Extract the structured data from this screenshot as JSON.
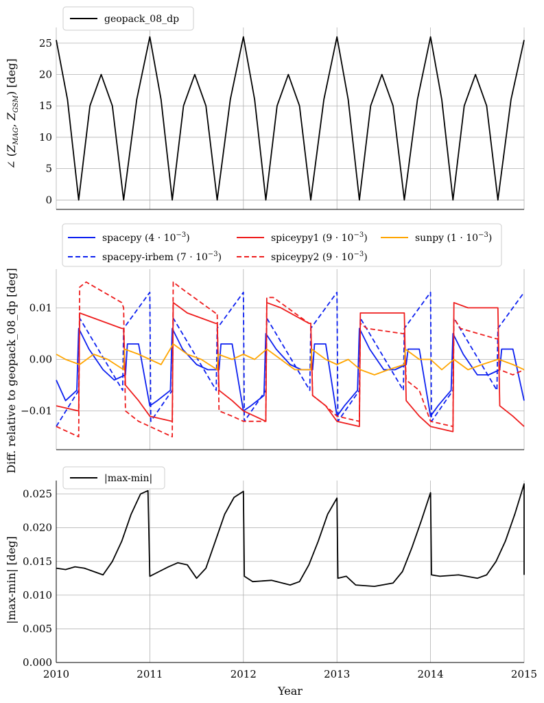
{
  "figure": {
    "xlabel": "Year",
    "colors": {
      "black": "#000000",
      "blue": "#0b1ff0",
      "red": "#ee1c1c",
      "orange": "#ffa500",
      "grid": "#b0b0b0"
    }
  },
  "chart_data": [
    {
      "type": "line",
      "id": "angle",
      "title": "",
      "xlabel": "",
      "ylabel": "∠ (Z_MAG, Z_GSM) [deg]",
      "ylabel_parts": {
        "pre": "∠ (",
        "z1": "Z",
        "s1": "MAG",
        "comma": ", ",
        "z2": "Z",
        "s2": "GSM",
        "post": ") [deg]"
      },
      "xlim": [
        2010,
        2015
      ],
      "ylim": [
        -1.5,
        27.5
      ],
      "xticks": [
        2010,
        2011,
        2012,
        2013,
        2014,
        2015
      ],
      "yticks": [
        0,
        5,
        10,
        15,
        20,
        25
      ],
      "ytick_labels": [
        "0",
        "5",
        "10",
        "15",
        "20",
        "25"
      ],
      "grid": true,
      "legend_position": "top-left",
      "series": [
        {
          "name": "geopack_08_dp",
          "color": "#000000",
          "dash": "solid",
          "x": [
            2010.0,
            2010.12,
            2010.24,
            2010.36,
            2010.48,
            2010.6,
            2010.72,
            2010.86,
            2011.0,
            2011.12,
            2011.24,
            2011.36,
            2011.48,
            2011.6,
            2011.72,
            2011.86,
            2012.0,
            2012.12,
            2012.24,
            2012.36,
            2012.48,
            2012.6,
            2012.72,
            2012.86,
            2013.0,
            2013.12,
            2013.24,
            2013.36,
            2013.48,
            2013.6,
            2013.72,
            2013.86,
            2014.0,
            2014.12,
            2014.24,
            2014.36,
            2014.48,
            2014.6,
            2014.72,
            2014.86,
            2015.0
          ],
          "y": [
            25.5,
            16,
            0,
            15,
            20,
            15,
            0,
            16,
            26,
            16,
            0,
            15,
            20,
            15,
            0,
            16,
            26,
            16,
            0,
            15,
            20,
            15,
            0,
            16,
            26,
            16,
            0,
            15,
            20,
            15,
            0,
            16,
            26,
            16,
            0,
            15,
            20,
            15,
            0,
            16,
            25.5
          ]
        }
      ]
    },
    {
      "type": "line",
      "id": "diff",
      "title": "",
      "xlabel": "",
      "ylabel": "Diff. relative to geopack_08_dp [deg]",
      "xlim": [
        2010,
        2015
      ],
      "ylim": [
        -0.0175,
        0.0175
      ],
      "xticks": [
        2010,
        2011,
        2012,
        2013,
        2014,
        2015
      ],
      "yticks": [
        -0.01,
        0.0,
        0.01
      ],
      "ytick_labels": [
        "−0.01",
        "0.00",
        "0.01"
      ],
      "grid": true,
      "legend_position": "top-center",
      "series": [
        {
          "name": "spacepy",
          "label_value": "(4 · 10",
          "label_exp": "−3",
          "color": "#0b1ff0",
          "dash": "solid",
          "x": [
            2010.0,
            2010.1,
            2010.22,
            2010.24,
            2010.35,
            2010.5,
            2010.62,
            2010.74,
            2010.76,
            2010.88,
            2011.0,
            2011.08,
            2011.22,
            2011.24,
            2011.35,
            2011.5,
            2011.62,
            2011.74,
            2011.76,
            2011.88,
            2012.0,
            2012.08,
            2012.22,
            2012.24,
            2012.35,
            2012.5,
            2012.62,
            2012.74,
            2012.76,
            2012.88,
            2013.0,
            2013.08,
            2013.22,
            2013.24,
            2013.35,
            2013.5,
            2013.62,
            2013.74,
            2013.76,
            2013.88,
            2014.0,
            2014.08,
            2014.22,
            2014.24,
            2014.35,
            2014.5,
            2014.62,
            2014.74,
            2014.76,
            2014.88,
            2015.0
          ],
          "y": [
            -0.004,
            -0.008,
            -0.006,
            0.006,
            0.002,
            -0.002,
            -0.004,
            -0.003,
            0.003,
            0.003,
            -0.009,
            -0.008,
            -0.006,
            0.006,
            0.002,
            -0.001,
            -0.002,
            -0.002,
            0.003,
            0.003,
            -0.01,
            -0.009,
            -0.007,
            0.005,
            0.002,
            -0.001,
            -0.002,
            -0.002,
            0.003,
            0.003,
            -0.011,
            -0.009,
            -0.006,
            0.006,
            0.002,
            -0.002,
            -0.002,
            -0.001,
            0.002,
            0.002,
            -0.011,
            -0.009,
            -0.006,
            0.005,
            0.001,
            -0.003,
            -0.003,
            -0.002,
            0.002,
            0.002,
            -0.008
          ]
        },
        {
          "name": "spacepy-irbem",
          "label_value": "(7 · 10",
          "label_exp": "−3",
          "color": "#0b1ff0",
          "dash": "dashed",
          "x": [
            2010.0,
            2010.24,
            2010.25,
            2010.71,
            2010.72,
            2011.0,
            2011.01,
            2011.24,
            2011.25,
            2011.71,
            2011.72,
            2012.0,
            2012.01,
            2012.24,
            2012.25,
            2012.71,
            2012.72,
            2013.0,
            2013.01,
            2013.24,
            2013.25,
            2013.71,
            2013.72,
            2014.0,
            2014.01,
            2014.24,
            2014.25,
            2014.71,
            2014.72,
            2015.0
          ],
          "y": [
            -0.013,
            -0.006,
            0.008,
            -0.006,
            0.006,
            0.013,
            -0.012,
            -0.006,
            0.008,
            -0.006,
            0.006,
            0.013,
            -0.012,
            -0.006,
            0.008,
            -0.006,
            0.006,
            0.013,
            -0.012,
            -0.006,
            0.008,
            -0.006,
            0.006,
            0.013,
            -0.012,
            -0.006,
            0.008,
            -0.006,
            0.006,
            0.013
          ]
        },
        {
          "name": "spiceypy1",
          "label_value": "(9 · 10",
          "label_exp": "−3",
          "color": "#ee1c1c",
          "dash": "solid",
          "x": [
            2010.0,
            2010.24,
            2010.25,
            2010.4,
            2010.7,
            2010.72,
            2010.74,
            2010.88,
            2011.0,
            2011.24,
            2011.25,
            2011.4,
            2011.7,
            2011.72,
            2011.74,
            2011.88,
            2012.0,
            2012.24,
            2012.25,
            2012.4,
            2012.7,
            2012.72,
            2012.74,
            2012.88,
            2013.0,
            2013.24,
            2013.25,
            2013.4,
            2013.7,
            2013.72,
            2013.74,
            2013.88,
            2014.0,
            2014.24,
            2014.25,
            2014.4,
            2014.7,
            2014.72,
            2014.74,
            2014.88,
            2015.0
          ],
          "y": [
            -0.009,
            -0.01,
            0.009,
            0.008,
            0.006,
            0.006,
            -0.005,
            -0.008,
            -0.011,
            -0.012,
            0.011,
            0.009,
            0.007,
            0.007,
            -0.006,
            -0.008,
            -0.01,
            -0.012,
            0.011,
            0.01,
            0.007,
            0.007,
            -0.007,
            -0.009,
            -0.012,
            -0.013,
            0.009,
            0.009,
            0.009,
            0.009,
            -0.008,
            -0.011,
            -0.013,
            -0.014,
            0.011,
            0.01,
            0.01,
            0.01,
            -0.009,
            -0.011,
            -0.013
          ]
        },
        {
          "name": "spiceypy2",
          "label_value": "(9 · 10",
          "label_exp": "−3",
          "color": "#ee1c1c",
          "dash": "dashed",
          "x": [
            2010.0,
            2010.24,
            2010.25,
            2010.32,
            2010.7,
            2010.72,
            2010.74,
            2010.88,
            2011.0,
            2011.24,
            2011.25,
            2011.32,
            2011.7,
            2011.72,
            2011.74,
            2011.88,
            2012.0,
            2012.24,
            2012.25,
            2012.32,
            2012.7,
            2012.72,
            2012.74,
            2012.88,
            2013.0,
            2013.24,
            2013.25,
            2013.32,
            2013.7,
            2013.72,
            2013.74,
            2013.88,
            2014.0,
            2014.24,
            2014.25,
            2014.32,
            2014.7,
            2014.72,
            2014.74,
            2014.88,
            2015.0
          ],
          "y": [
            -0.013,
            -0.015,
            0.014,
            0.015,
            0.011,
            0.01,
            -0.01,
            -0.012,
            -0.013,
            -0.015,
            0.015,
            0.014,
            0.009,
            0.009,
            -0.01,
            -0.011,
            -0.012,
            -0.012,
            0.012,
            0.012,
            0.007,
            0.007,
            -0.007,
            -0.009,
            -0.011,
            -0.012,
            0.007,
            0.006,
            0.005,
            0.005,
            -0.004,
            -0.006,
            -0.012,
            -0.013,
            0.008,
            0.006,
            0.004,
            0.004,
            -0.002,
            -0.003,
            -0.002
          ]
        },
        {
          "name": "sunpy",
          "label_value": "(1 · 10",
          "label_exp": "−3",
          "color": "#ffa500",
          "dash": "solid",
          "x": [
            2010.0,
            2010.1,
            2010.25,
            2010.4,
            2010.55,
            2010.72,
            2010.73,
            2010.88,
            2011.0,
            2011.12,
            2011.25,
            2011.4,
            2011.55,
            2011.72,
            2011.73,
            2011.88,
            2012.0,
            2012.12,
            2012.25,
            2012.4,
            2012.55,
            2012.72,
            2012.73,
            2012.88,
            2013.0,
            2013.12,
            2013.25,
            2013.4,
            2013.55,
            2013.72,
            2013.73,
            2013.88,
            2014.0,
            2014.12,
            2014.25,
            2014.4,
            2014.55,
            2014.72,
            2014.73,
            2014.88,
            2015.0
          ],
          "y": [
            0.001,
            0.0,
            -0.001,
            0.001,
            0.0,
            -0.002,
            0.002,
            0.001,
            0.0,
            -0.001,
            0.003,
            0.001,
            0.0,
            -0.002,
            0.001,
            0.0,
            0.001,
            0.0,
            0.002,
            0.0,
            -0.002,
            -0.002,
            0.002,
            0.0,
            -0.001,
            0.0,
            -0.002,
            -0.003,
            -0.002,
            -0.001,
            0.002,
            0.0,
            0.0,
            -0.002,
            0.0,
            -0.002,
            -0.001,
            0.0,
            0.0,
            -0.001,
            -0.002
          ]
        }
      ]
    },
    {
      "type": "line",
      "id": "maxmin",
      "title": "",
      "xlabel": "Year",
      "ylabel": "|max-min| [deg]",
      "xlim": [
        2010,
        2015
      ],
      "ylim": [
        0.0,
        0.027
      ],
      "xticks": [
        2010,
        2011,
        2012,
        2013,
        2014,
        2015
      ],
      "xtick_labels": [
        "2010",
        "2011",
        "2012",
        "2013",
        "2014",
        "2015"
      ],
      "yticks": [
        0.0,
        0.005,
        0.01,
        0.015,
        0.02,
        0.025
      ],
      "ytick_labels": [
        "0.000",
        "0.005",
        "0.010",
        "0.015",
        "0.020",
        "0.025"
      ],
      "grid": true,
      "legend_position": "top-left",
      "series": [
        {
          "name": "|max-min|",
          "color": "#000000",
          "dash": "solid",
          "x": [
            2010.0,
            2010.1,
            2010.2,
            2010.3,
            2010.4,
            2010.5,
            2010.6,
            2010.7,
            2010.8,
            2010.9,
            2010.98,
            2011.0,
            2011.1,
            2011.2,
            2011.3,
            2011.4,
            2011.5,
            2011.6,
            2011.7,
            2011.8,
            2011.9,
            2012.0,
            2012.01,
            2012.1,
            2012.3,
            2012.5,
            2012.6,
            2012.7,
            2012.8,
            2012.9,
            2013.0,
            2013.01,
            2013.1,
            2013.2,
            2013.4,
            2013.6,
            2013.7,
            2013.8,
            2013.9,
            2014.0,
            2014.01,
            2014.1,
            2014.3,
            2014.5,
            2014.6,
            2014.7,
            2014.8,
            2014.9,
            2015.0,
            2015.0
          ],
          "y": [
            0.014,
            0.0138,
            0.0142,
            0.014,
            0.0135,
            0.013,
            0.015,
            0.018,
            0.022,
            0.025,
            0.0255,
            0.0128,
            0.0135,
            0.0142,
            0.0148,
            0.0145,
            0.0125,
            0.014,
            0.018,
            0.022,
            0.0245,
            0.0254,
            0.0128,
            0.012,
            0.0122,
            0.0115,
            0.012,
            0.0145,
            0.018,
            0.022,
            0.0244,
            0.0125,
            0.0128,
            0.0115,
            0.0113,
            0.0118,
            0.0135,
            0.017,
            0.021,
            0.0252,
            0.013,
            0.0128,
            0.013,
            0.0125,
            0.013,
            0.015,
            0.018,
            0.022,
            0.0265,
            0.013
          ]
        }
      ]
    }
  ]
}
